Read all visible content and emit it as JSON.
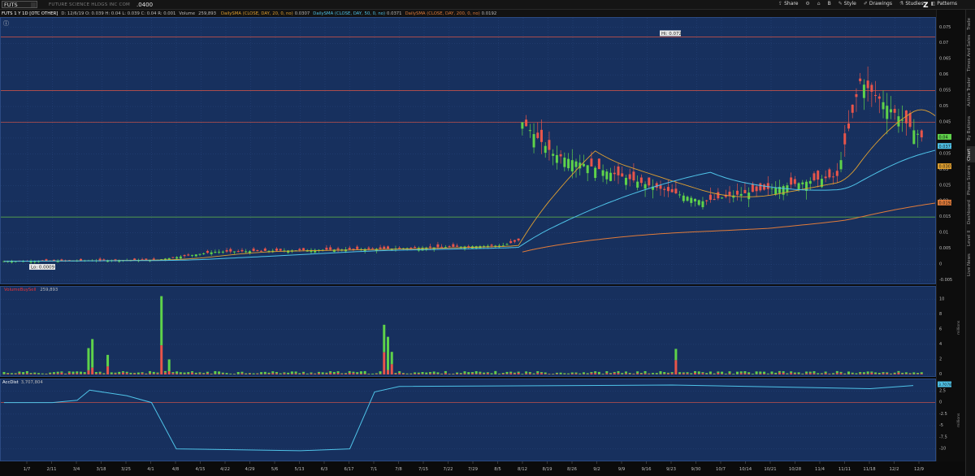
{
  "app": {
    "symbol": "FUTS",
    "company": "FUTURE SCIENCE HLDGS INC COM",
    "price": ".0400"
  },
  "toolbar": [
    {
      "label": "Share",
      "icon": "share-icon"
    },
    {
      "label": "",
      "icon": "gear-icon"
    },
    {
      "label": "",
      "icon": "lock-icon"
    },
    {
      "label": "B",
      "icon": ""
    },
    {
      "label": "Style",
      "icon": "style-icon"
    },
    {
      "label": "Drawings",
      "icon": "pencil-icon"
    },
    {
      "label": "Studies",
      "icon": "flask-icon"
    },
    {
      "label": "Patterns",
      "icon": "pattern-icon"
    }
  ],
  "infobar": {
    "title": "FUTS 1 Y 1D [OTC OTHER]",
    "ohlc": "D: 12/6/19  O: 0.039  H: 0.04  L: 0.039  C: 0.04  R: 0.001",
    "volume_label": "Volume",
    "volume_value": "259,893",
    "sma": [
      {
        "label": "DailySMA (CLOSE, DAY, 20, 0, no)",
        "value": "0.0307",
        "color": "#e0a030"
      },
      {
        "label": "DailySMA (CLOSE, DAY, 50, 0, no)",
        "value": "0.0371",
        "color": "#4fc3e8"
      },
      {
        "label": "DailySMA (CLOSE, DAY, 200, 0, no)",
        "value": "0.0192",
        "color": "#e07b3a"
      }
    ]
  },
  "vtabs": [
    "Trade",
    "Times And Sales",
    "Active Trader",
    "By Buttons",
    "Chart",
    "Phase Scores",
    "Dashboard",
    "Level II",
    "Live News"
  ],
  "active_tab": "Chart",
  "colors": {
    "up": "#5ed24a",
    "down": "#e8554a",
    "bg": "#17305e",
    "grid": "#2d4d85",
    "sma20": "#e0a030",
    "sma50": "#4fc3e8",
    "sma200": "#e07b3a",
    "hline": "#c0504a",
    "greenline": "#5aa84a"
  },
  "chart_data": [
    {
      "type": "candlestick",
      "title": "FUTS 1 Y 1D [OTC OTHER]",
      "x": [
        "1/7",
        "2/11",
        "3/4",
        "3/18",
        "3/25",
        "4/1",
        "4/8",
        "4/15",
        "4/22",
        "4/29",
        "5/6",
        "5/13",
        "6/3",
        "6/17",
        "7/1",
        "7/8",
        "7/15",
        "7/22",
        "7/29",
        "8/5",
        "8/12",
        "8/19",
        "8/26",
        "9/2",
        "9/9",
        "9/16",
        "9/23",
        "9/30",
        "10/7",
        "10/14",
        "10/21",
        "10/28",
        "11/4",
        "11/11",
        "11/18",
        "12/2",
        "12/9"
      ],
      "y_ticks": [
        0.075,
        0.07,
        0.065,
        0.06,
        0.055,
        0.05,
        0.045,
        0.04,
        0.035,
        0.03,
        0.025,
        0.02,
        0.015,
        0.01,
        0.005,
        0,
        -0.005
      ],
      "ylim": [
        -0.005,
        0.077
      ],
      "annotations": {
        "high": "Hi: 0.072",
        "low": "Lo: 0.0009"
      },
      "hlines": [
        0.072,
        0.055,
        0.045,
        0.015
      ],
      "last_price": "0.04",
      "sma_values": {
        "sma50": "0.0371",
        "sma20": "0.0307",
        "sma200": "0.0192"
      }
    },
    {
      "type": "bar",
      "title": "VolumeBuySell",
      "value": "259,893",
      "ylabel": "millions",
      "y_ticks": [
        10,
        8,
        6,
        4,
        2,
        0
      ],
      "ylim": [
        0,
        11
      ],
      "spikes": [
        {
          "x": "3/4",
          "value": 3.5
        },
        {
          "x": "3/11",
          "value": 4.7
        },
        {
          "x": "4/1",
          "value": 10.4
        },
        {
          "x": "7/1",
          "value": 6.6
        },
        {
          "x": "9/16",
          "value": 3.4
        }
      ]
    },
    {
      "type": "line",
      "title": "AccDist",
      "value": "3,707,804",
      "ylabel": "millions",
      "y_ticks": [
        2.5,
        0,
        -2.5,
        -5,
        -7.5,
        -10
      ],
      "ylim": [
        -12,
        4.5
      ],
      "last_label": "3.7078",
      "approx_path": [
        {
          "x": "1/7",
          "value": 0
        },
        {
          "x": "2/11",
          "value": 0
        },
        {
          "x": "3/4",
          "value": 0.5
        },
        {
          "x": "3/11",
          "value": 2.7
        },
        {
          "x": "3/25",
          "value": 1.5
        },
        {
          "x": "4/1",
          "value": 0
        },
        {
          "x": "4/8",
          "value": -10
        },
        {
          "x": "5/13",
          "value": -10.4
        },
        {
          "x": "6/17",
          "value": -10
        },
        {
          "x": "7/1",
          "value": 2.3
        },
        {
          "x": "7/8",
          "value": 3.5
        },
        {
          "x": "9/23",
          "value": 3.8
        },
        {
          "x": "11/18",
          "value": 3.0
        },
        {
          "x": "12/6",
          "value": 3.7
        }
      ]
    }
  ]
}
